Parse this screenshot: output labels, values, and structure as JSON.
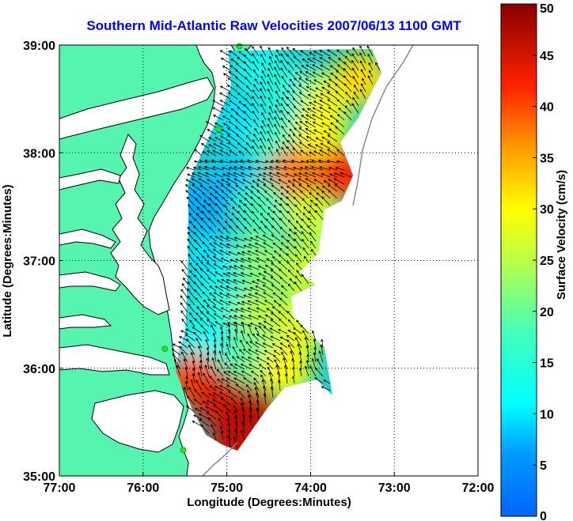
{
  "title": "Southern Mid-Atlantic Raw Velocities 2007/06/13 1100 GMT",
  "x_axis": {
    "label": "Longitude (Degrees:Minutes)",
    "ticks": [
      "77:00",
      "76:00",
      "75:00",
      "74:00",
      "73:00",
      "72:00"
    ],
    "values": [
      -77,
      -76,
      -75,
      -74,
      -73,
      -72
    ]
  },
  "y_axis": {
    "label": "Latitude (Degrees:Minutes)",
    "ticks": [
      "35:00",
      "36:00",
      "37:00",
      "38:00",
      "39:00"
    ],
    "values": [
      35,
      36,
      37,
      38,
      39
    ]
  },
  "colorbar": {
    "label": "Surface Velocity (cm/s)",
    "ticks": [
      "0",
      "5",
      "10",
      "15",
      "20",
      "25",
      "30",
      "35",
      "40",
      "45",
      "50"
    ],
    "min": 0,
    "max": 50,
    "colormap": "jet"
  },
  "colors": {
    "land": "#55f5b0",
    "water": "#ffffff",
    "title": "#0000ff",
    "station": "#33dd33",
    "arrow": "#000000"
  },
  "chart_data": {
    "type": "heatmap",
    "title": "Southern Mid-Atlantic Raw Velocities 2007/06/13 1100 GMT",
    "xlabel": "Longitude (Degrees:Minutes)",
    "ylabel": "Latitude (Degrees:Minutes)",
    "xlim": [
      -77,
      -72
    ],
    "ylim": [
      35,
      39
    ],
    "colorbar_label": "Surface Velocity (cm/s)",
    "colorbar_range": [
      0,
      50
    ],
    "grid": "dotted",
    "velocity_regions": [
      {
        "lon": -74.6,
        "lat": 38.8,
        "speed": 12
      },
      {
        "lon": -74.3,
        "lat": 38.6,
        "speed": 14
      },
      {
        "lon": -73.8,
        "lat": 38.5,
        "speed": 28
      },
      {
        "lon": -73.4,
        "lat": 38.7,
        "speed": 32
      },
      {
        "lon": -74.9,
        "lat": 38.3,
        "speed": 10
      },
      {
        "lon": -74.4,
        "lat": 38.1,
        "speed": 16
      },
      {
        "lon": -73.9,
        "lat": 38.2,
        "speed": 30
      },
      {
        "lon": -73.6,
        "lat": 37.8,
        "speed": 42
      },
      {
        "lon": -74.2,
        "lat": 37.8,
        "speed": 38
      },
      {
        "lon": -74.9,
        "lat": 37.7,
        "speed": 8
      },
      {
        "lon": -75.3,
        "lat": 37.5,
        "speed": 7
      },
      {
        "lon": -74.6,
        "lat": 37.5,
        "speed": 18
      },
      {
        "lon": -74.0,
        "lat": 37.4,
        "speed": 27
      },
      {
        "lon": -73.8,
        "lat": 37.1,
        "speed": 24
      },
      {
        "lon": -75.2,
        "lat": 37.0,
        "speed": 10
      },
      {
        "lon": -74.6,
        "lat": 37.0,
        "speed": 22
      },
      {
        "lon": -74.1,
        "lat": 36.9,
        "speed": 26
      },
      {
        "lon": -75.1,
        "lat": 36.6,
        "speed": 14
      },
      {
        "lon": -74.6,
        "lat": 36.5,
        "speed": 25
      },
      {
        "lon": -74.1,
        "lat": 36.4,
        "speed": 28
      },
      {
        "lon": -75.3,
        "lat": 36.2,
        "speed": 12
      },
      {
        "lon": -74.7,
        "lat": 36.1,
        "speed": 20
      },
      {
        "lon": -74.3,
        "lat": 36.0,
        "speed": 30
      },
      {
        "lon": -75.4,
        "lat": 35.9,
        "speed": 40
      },
      {
        "lon": -75.1,
        "lat": 35.7,
        "speed": 44
      },
      {
        "lon": -74.7,
        "lat": 35.6,
        "speed": 47
      },
      {
        "lon": -74.9,
        "lat": 35.3,
        "speed": 46
      }
    ],
    "stations": [
      {
        "lon": -74.85,
        "lat": 38.99
      },
      {
        "lon": -75.1,
        "lat": 38.22
      },
      {
        "lon": -75.74,
        "lat": 36.18
      },
      {
        "lon": -75.52,
        "lat": 35.24
      }
    ]
  }
}
